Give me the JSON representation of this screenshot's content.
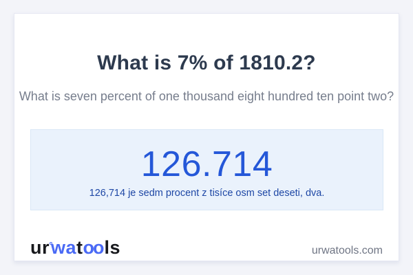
{
  "header": {
    "title": "What is 7% of 1810.2?",
    "subtitle": "What is seven percent of one thousand eight hundred ten point two?"
  },
  "result": {
    "value": "126.714",
    "description": "126,714 je sedm procent z tisíce osm set deseti, dva."
  },
  "footer": {
    "logo_parts": {
      "ur": "ur",
      "wa": "wa",
      "t": "t",
      "oo": "oo",
      "ls": "ls"
    },
    "website": "urwatools.com"
  },
  "colors": {
    "page_bg": "#f3f4f9",
    "card_bg": "#ffffff",
    "card_border": "#e6e8f3",
    "title_color": "#2d3a4e",
    "subtitle_color": "#767d8c",
    "result_box_bg": "#eaf2fc",
    "result_box_border": "#d9e7f6",
    "result_value_color": "#2457d8",
    "result_desc_color": "#1e47a5",
    "logo_dark": "#17181c",
    "logo_blue": "#4a6af5",
    "website_color": "#6f7584"
  }
}
